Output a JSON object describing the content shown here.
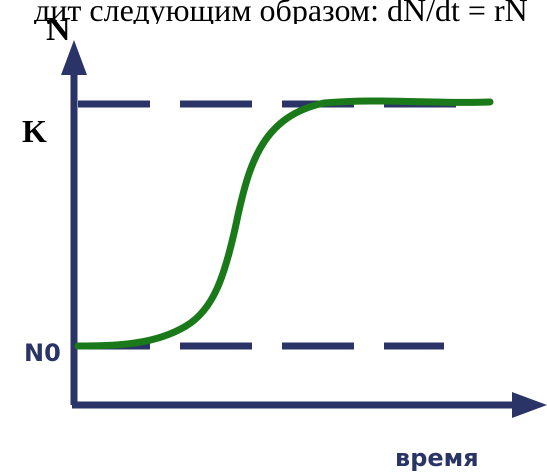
{
  "header_fragment": "дит следующим образом: dN/dt = rN",
  "y_axis_label": "N",
  "x_axis_label": "время",
  "level_labels": {
    "carrying_capacity": "K",
    "initial": "N0"
  },
  "colors": {
    "axis": "#2b3467",
    "dashes": "#2b3467",
    "curve": "#1a7a1a",
    "axis_text": "#2b3467",
    "header_text": "#000000"
  }
}
